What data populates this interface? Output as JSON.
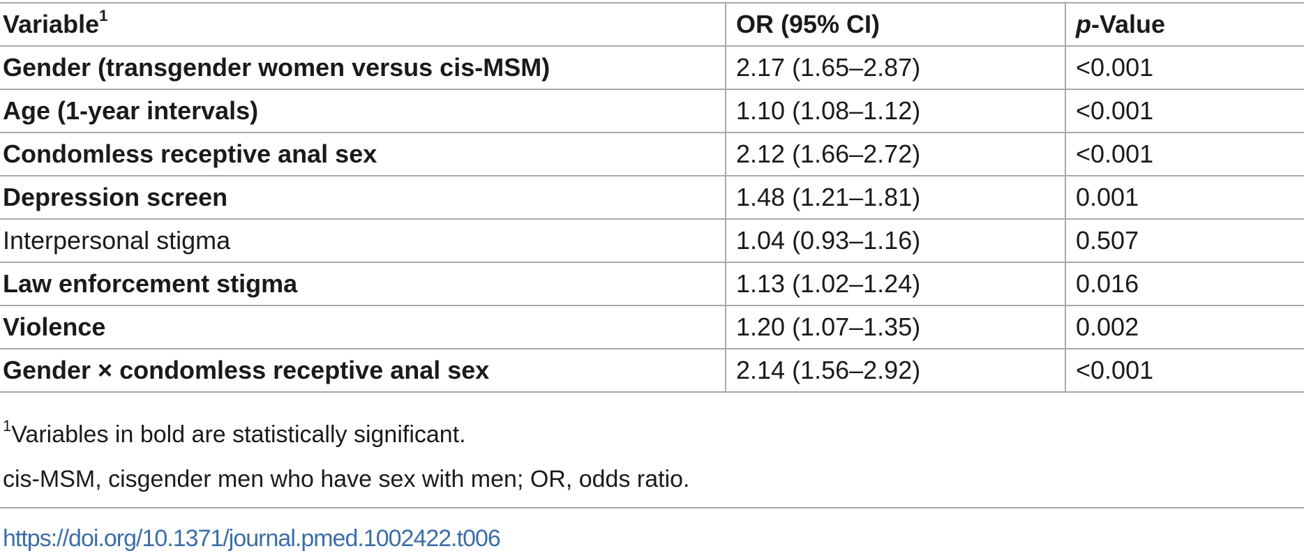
{
  "table": {
    "headers": {
      "variable": "Variable",
      "variable_sup": "1",
      "or": "OR (95% CI)",
      "p_italic": "p",
      "p_rest": "-Value"
    },
    "rows": [
      {
        "variable": "Gender (transgender women versus cis-MSM)",
        "or": "2.17 (1.65–2.87)",
        "p": "<0.001",
        "significant": true
      },
      {
        "variable": "Age (1-year intervals)",
        "or": "1.10 (1.08–1.12)",
        "p": "<0.001",
        "significant": true
      },
      {
        "variable": "Condomless receptive anal sex",
        "or": "2.12 (1.66–2.72)",
        "p": "<0.001",
        "significant": true
      },
      {
        "variable": "Depression screen",
        "or": "1.48 (1.21–1.81)",
        "p": "0.001",
        "significant": true
      },
      {
        "variable": "Interpersonal stigma",
        "or": "1.04 (0.93–1.16)",
        "p": "0.507",
        "significant": false
      },
      {
        "variable": "Law enforcement stigma",
        "or": "1.13 (1.02–1.24)",
        "p": "0.016",
        "significant": true
      },
      {
        "variable": "Violence",
        "or": "1.20 (1.07–1.35)",
        "p": "0.002",
        "significant": true
      },
      {
        "variable": "Gender × condomless receptive anal sex",
        "or": "2.14 (1.56–2.92)",
        "p": "<0.001",
        "significant": true
      }
    ]
  },
  "footnotes": {
    "note1_sup": "1",
    "note1_text": "Variables in bold are statistically significant.",
    "note2_text": "cis-MSM, cisgender men who have sex with men; OR, odds ratio."
  },
  "doi_link": "https://doi.org/10.1371/journal.pmed.1002422.t006",
  "colors": {
    "rule": "#a8a8a8",
    "link": "#3b6ea8",
    "text": "#1a1a1a"
  }
}
